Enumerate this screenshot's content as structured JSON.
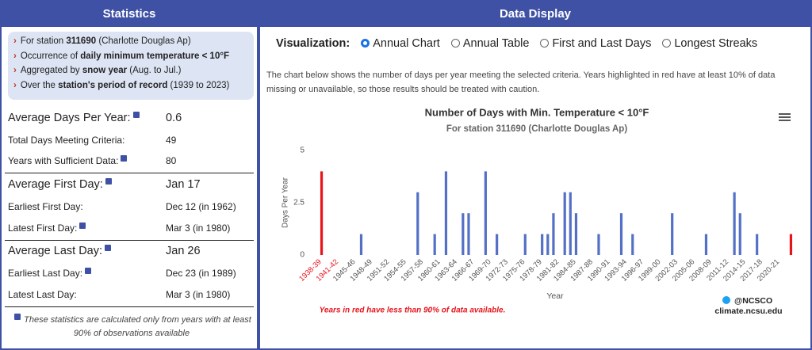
{
  "left": {
    "header": "Statistics",
    "criteria": [
      [
        "For station ",
        "311690",
        " (Charlotte Douglas Ap)"
      ],
      [
        "Occurrence of ",
        "daily minimum temperature < 10°F"
      ],
      [
        "Aggregated by ",
        "snow year",
        " (Aug. to Jul.)"
      ],
      [
        "Over the ",
        "station's period of record",
        " (1939 to 2023)"
      ]
    ],
    "groups": [
      [
        {
          "label": "Average Days Per Year:",
          "value": "0.6"
        },
        {
          "label": "Total Days Meeting Criteria:",
          "value": "49"
        },
        {
          "label": "Years with Sufficient Data:",
          "value": "80"
        }
      ],
      [
        {
          "label": "Average First Day:",
          "value": "Jan 17"
        },
        {
          "label": "Earliest First Day:",
          "value": "Dec 12 (in 1962)"
        },
        {
          "label": "Latest First Day:",
          "value": "Mar 3 (in 1980)"
        }
      ],
      [
        {
          "label": "Average Last Day:",
          "value": "Jan 26"
        },
        {
          "label": "Earliest Last Day:",
          "value": "Dec 23 (in 1989)"
        },
        {
          "label": "Latest Last Day:",
          "value": "Mar 3 (in 1980)"
        }
      ]
    ],
    "footnote": "These statistics are calculated only from years with at least 90% of observations available"
  },
  "right": {
    "header": "Data Display",
    "viz_label": "Visualization:",
    "options": [
      "Annual Chart",
      "Annual Table",
      "First and Last Days",
      "Longest Streaks"
    ],
    "selected": 0,
    "description": "The chart below shows the number of days per year meeting the selected criteria. Years highlighted in red have at least 10% of data missing or unavailable, so those results should be treated with caution.",
    "credit_handle": "@NCSCO",
    "credit_site": "climate.ncsu.edu"
  },
  "chart_data": {
    "type": "bar",
    "title": "Number of Days with Min. Temperature < 10°F",
    "subtitle": "For station 311690 (Charlotte Douglas Ap)",
    "x_label": "Year",
    "y_label": "Days Per Year",
    "note": "Years in red have less than 90% of data available.",
    "categories": [
      "1938-39",
      null,
      null,
      "1941-42",
      null,
      null,
      "1945-46",
      null,
      null,
      "1948-49",
      null,
      null,
      "1951-52",
      null,
      null,
      "1954-55",
      null,
      null,
      "1957-58",
      null,
      null,
      "1960-61",
      null,
      null,
      "1963-64",
      null,
      null,
      "1966-67",
      null,
      null,
      "1969-70",
      null,
      null,
      "1972-73",
      null,
      null,
      "1975-76",
      null,
      null,
      "1978-79",
      null,
      null,
      "1981-82",
      null,
      null,
      "1984-85",
      null,
      null,
      "1987-88",
      null,
      null,
      "1990-91",
      null,
      null,
      "1993-94",
      null,
      null,
      "1996-97",
      null,
      null,
      "1999-00",
      null,
      null,
      "2002-03",
      null,
      null,
      "2005-06",
      null,
      null,
      "2008-09",
      null,
      null,
      "2011-12",
      null,
      null,
      "2014-15",
      null,
      null,
      "2017-18",
      null,
      null,
      "2020-21",
      null,
      null
    ],
    "values": [
      4,
      0,
      0,
      0,
      0,
      0,
      0,
      1,
      0,
      0,
      0,
      0,
      0,
      0,
      0,
      0,
      0,
      3,
      0,
      0,
      1,
      0,
      4,
      0,
      0,
      2,
      2,
      0,
      0,
      4,
      0,
      1,
      0,
      0,
      0,
      0,
      1,
      0,
      0,
      1,
      1,
      2,
      0,
      3,
      3,
      2,
      0,
      0,
      0,
      1,
      0,
      0,
      0,
      2,
      0,
      1,
      0,
      0,
      0,
      0,
      0,
      0,
      2,
      0,
      0,
      0,
      0,
      0,
      1,
      0,
      0,
      0,
      0,
      3,
      2,
      0,
      0,
      1,
      0,
      0,
      0,
      0,
      0,
      1
    ],
    "color": "#5470c6",
    "highlight_color": "#e8141c",
    "incomplete": [
      0,
      3,
      83
    ],
    "ylim": [
      0,
      5
    ],
    "yticks": [
      0,
      2.5,
      5
    ]
  }
}
